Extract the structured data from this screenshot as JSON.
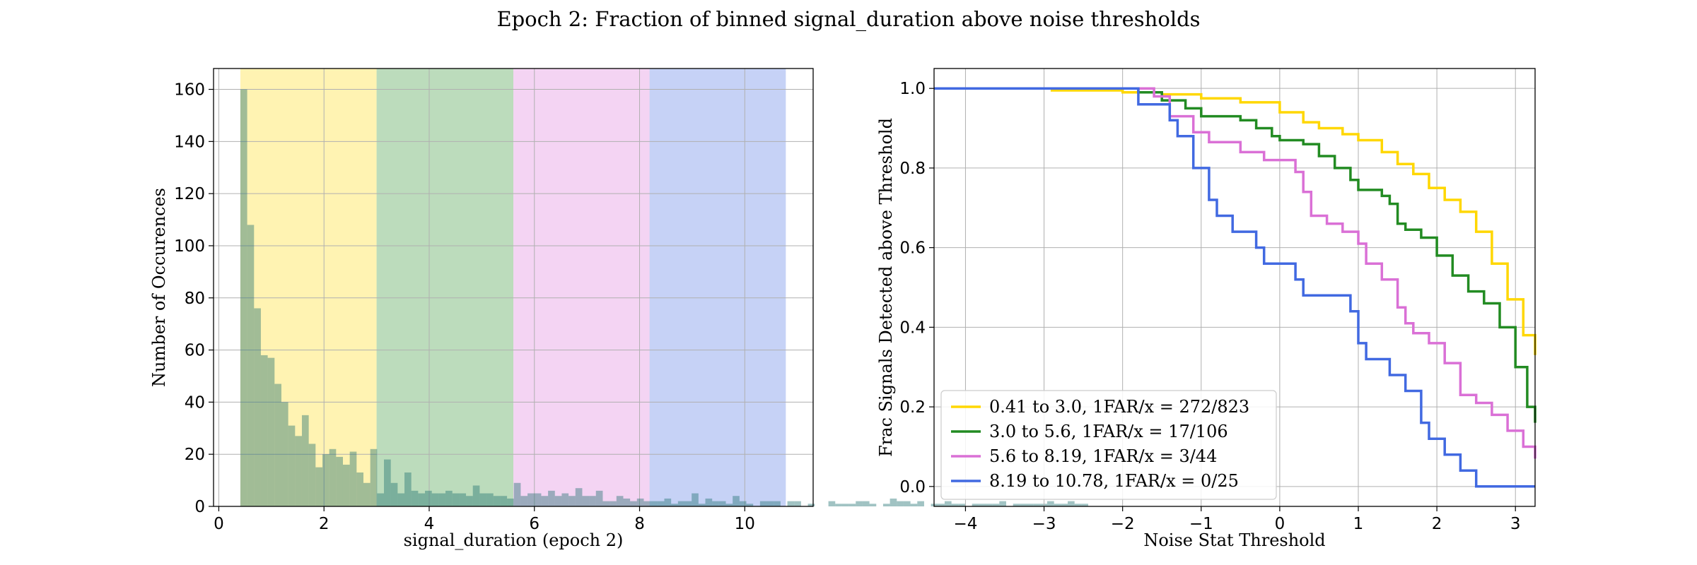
{
  "figure": {
    "suptitle": "Epoch 2: Fraction of binned signal_duration above noise thresholds"
  },
  "chart_data": [
    {
      "type": "bar",
      "subtype": "histogram",
      "title": "",
      "xlabel": "signal_duration (epoch 2)",
      "ylabel": "Number of Occurences",
      "xlim": [
        -0.1,
        11.3
      ],
      "ylim": [
        0,
        168
      ],
      "xticks": [
        0,
        2,
        4,
        6,
        8,
        10
      ],
      "yticks": [
        0,
        20,
        40,
        60,
        80,
        100,
        120,
        140,
        160
      ],
      "grid": true,
      "bin_start": 0.41,
      "bin_width": 0.13,
      "counts": [
        160,
        108,
        76,
        58,
        57,
        47,
        40,
        31,
        27,
        35,
        24,
        15,
        20,
        22,
        19,
        16,
        21,
        13,
        9,
        22,
        5,
        18,
        9,
        5,
        13,
        6,
        5,
        6,
        5,
        5,
        6,
        5,
        5,
        4,
        8,
        5,
        5,
        4,
        4,
        3,
        9,
        4,
        5,
        5,
        4,
        6,
        4,
        5,
        4,
        7,
        4,
        4,
        6,
        2,
        2,
        4,
        3,
        2,
        3,
        2,
        2,
        2,
        3,
        1,
        2,
        2,
        5,
        1,
        3,
        2,
        2,
        1,
        4,
        2,
        1,
        0,
        2,
        2,
        2,
        0,
        2,
        2,
        0,
        1,
        0,
        0,
        2,
        1,
        1,
        1,
        2,
        2,
        1,
        0,
        1,
        3,
        2,
        2,
        1,
        2,
        0,
        1,
        1,
        2,
        1,
        1,
        0,
        1,
        1,
        1,
        1,
        2,
        0,
        1,
        1,
        1,
        1,
        1,
        2,
        1,
        1,
        2,
        1,
        1
      ],
      "bands": [
        {
          "from": 0.41,
          "to": 3.0,
          "color": "#ffd700"
        },
        {
          "from": 3.0,
          "to": 5.6,
          "color": "#228b22"
        },
        {
          "from": 5.6,
          "to": 8.19,
          "color": "#da70d6"
        },
        {
          "from": 8.19,
          "to": 10.78,
          "color": "#4169e1"
        }
      ]
    },
    {
      "type": "line",
      "subtype": "step",
      "title": "",
      "xlabel": "Noise Stat Threshold",
      "ylabel": "Frac Signals Detected above Threshold",
      "xlim": [
        -4.4,
        3.25
      ],
      "ylim": [
        -0.05,
        1.05
      ],
      "xticks": [
        -4,
        -3,
        -2,
        -1,
        0,
        1,
        2,
        3
      ],
      "yticks": [
        0.0,
        0.2,
        0.4,
        0.6,
        0.8,
        1.0
      ],
      "grid": true,
      "legend_position": "lower-left",
      "series": [
        {
          "name": "0.41 to 3.0, 1FAR/x = 272/823",
          "color": "#ffd700",
          "points": [
            [
              -4.4,
              1.0
            ],
            [
              -3.0,
              1.0
            ],
            [
              -2.9,
              0.995
            ],
            [
              -2.0,
              0.99
            ],
            [
              -1.5,
              0.985
            ],
            [
              -1.0,
              0.975
            ],
            [
              -0.5,
              0.965
            ],
            [
              0.0,
              0.94
            ],
            [
              0.3,
              0.915
            ],
            [
              0.5,
              0.9
            ],
            [
              0.8,
              0.885
            ],
            [
              1.0,
              0.87
            ],
            [
              1.3,
              0.84
            ],
            [
              1.5,
              0.81
            ],
            [
              1.7,
              0.785
            ],
            [
              1.9,
              0.75
            ],
            [
              2.1,
              0.72
            ],
            [
              2.3,
              0.69
            ],
            [
              2.5,
              0.64
            ],
            [
              2.7,
              0.56
            ],
            [
              2.9,
              0.47
            ],
            [
              3.1,
              0.38
            ],
            [
              3.25,
              0.33
            ]
          ]
        },
        {
          "name": "3.0 to 5.6, 1FAR/x = 17/106",
          "color": "#228b22",
          "points": [
            [
              -4.4,
              1.0
            ],
            [
              -2.0,
              1.0
            ],
            [
              -1.8,
              0.99
            ],
            [
              -1.5,
              0.97
            ],
            [
              -1.2,
              0.95
            ],
            [
              -1.0,
              0.93
            ],
            [
              -0.5,
              0.92
            ],
            [
              -0.3,
              0.9
            ],
            [
              -0.1,
              0.88
            ],
            [
              0.0,
              0.87
            ],
            [
              0.3,
              0.86
            ],
            [
              0.5,
              0.83
            ],
            [
              0.7,
              0.8
            ],
            [
              0.9,
              0.77
            ],
            [
              1.0,
              0.745
            ],
            [
              1.3,
              0.73
            ],
            [
              1.4,
              0.71
            ],
            [
              1.5,
              0.66
            ],
            [
              1.6,
              0.645
            ],
            [
              1.8,
              0.625
            ],
            [
              2.0,
              0.58
            ],
            [
              2.2,
              0.53
            ],
            [
              2.4,
              0.49
            ],
            [
              2.6,
              0.46
            ],
            [
              2.8,
              0.4
            ],
            [
              3.0,
              0.3
            ],
            [
              3.15,
              0.2
            ],
            [
              3.25,
              0.16
            ]
          ]
        },
        {
          "name": "5.6 to 8.19, 1FAR/x = 3/44",
          "color": "#da70d6",
          "points": [
            [
              -4.4,
              1.0
            ],
            [
              -1.8,
              1.0
            ],
            [
              -1.6,
              0.98
            ],
            [
              -1.4,
              0.93
            ],
            [
              -1.1,
              0.89
            ],
            [
              -0.9,
              0.865
            ],
            [
              -0.5,
              0.84
            ],
            [
              -0.2,
              0.82
            ],
            [
              0.2,
              0.79
            ],
            [
              0.3,
              0.74
            ],
            [
              0.4,
              0.68
            ],
            [
              0.6,
              0.66
            ],
            [
              0.8,
              0.64
            ],
            [
              1.0,
              0.61
            ],
            [
              1.1,
              0.56
            ],
            [
              1.3,
              0.52
            ],
            [
              1.5,
              0.45
            ],
            [
              1.6,
              0.41
            ],
            [
              1.7,
              0.385
            ],
            [
              1.9,
              0.36
            ],
            [
              2.1,
              0.31
            ],
            [
              2.3,
              0.23
            ],
            [
              2.5,
              0.21
            ],
            [
              2.7,
              0.18
            ],
            [
              2.9,
              0.14
            ],
            [
              3.1,
              0.1
            ],
            [
              3.25,
              0.07
            ]
          ]
        },
        {
          "name": "8.19 to 10.78, 1FAR/x = 0/25",
          "color": "#4169e1",
          "points": [
            [
              -4.4,
              1.0
            ],
            [
              -2.2,
              1.0
            ],
            [
              -1.8,
              0.96
            ],
            [
              -1.4,
              0.92
            ],
            [
              -1.3,
              0.88
            ],
            [
              -1.1,
              0.8
            ],
            [
              -0.9,
              0.72
            ],
            [
              -0.8,
              0.68
            ],
            [
              -0.6,
              0.64
            ],
            [
              -0.3,
              0.6
            ],
            [
              -0.2,
              0.56
            ],
            [
              0.2,
              0.52
            ],
            [
              0.3,
              0.48
            ],
            [
              0.9,
              0.44
            ],
            [
              1.0,
              0.36
            ],
            [
              1.1,
              0.32
            ],
            [
              1.4,
              0.28
            ],
            [
              1.6,
              0.24
            ],
            [
              1.8,
              0.16
            ],
            [
              1.9,
              0.12
            ],
            [
              2.1,
              0.08
            ],
            [
              2.3,
              0.04
            ],
            [
              2.5,
              0.0
            ],
            [
              3.25,
              0.0
            ]
          ]
        }
      ]
    }
  ]
}
